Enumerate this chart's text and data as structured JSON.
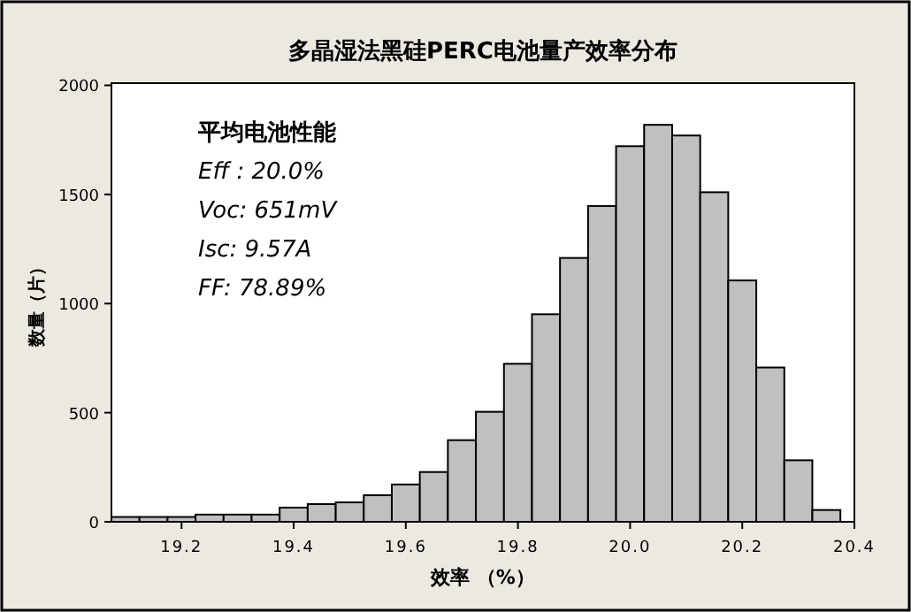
{
  "chart_data": {
    "type": "histogram",
    "title": "多晶湿法黑硅PERC电池量产效率分布",
    "xlabel": "效率 （%）",
    "ylabel": "数量（片）",
    "annotations": [
      "平均电池性能",
      "Eff : 20.0%",
      "Voc: 651mV",
      "Isc: 9.57A",
      "FF: 78.89%"
    ],
    "bins": [
      19.075,
      19.125,
      19.175,
      19.225,
      19.275,
      19.325,
      19.375,
      19.425,
      19.475,
      19.525,
      19.575,
      19.625,
      19.675,
      19.725,
      19.775,
      19.825,
      19.875,
      19.925,
      19.975,
      20.025,
      20.075,
      20.125,
      20.175,
      20.225,
      20.275,
      20.325,
      20.375
    ],
    "values": [
      22,
      22,
      22,
      33,
      33,
      33,
      65,
      81,
      89,
      122,
      171,
      228,
      374,
      504,
      724,
      951,
      1209,
      1447,
      1721,
      1819,
      1770,
      1510,
      1106,
      707,
      282,
      54
    ],
    "color": "#c0c0c0",
    "xlim": [
      19.075,
      20.4
    ],
    "xticks": [
      19.2,
      19.4,
      19.6,
      19.8,
      {
        "value": 20.0,
        "label": "20.0"
      },
      20.2,
      20.4
    ],
    "ylim": [
      0,
      2010
    ],
    "yticks": [
      0,
      500,
      1000,
      1500,
      2000
    ],
    "grid": false
  }
}
